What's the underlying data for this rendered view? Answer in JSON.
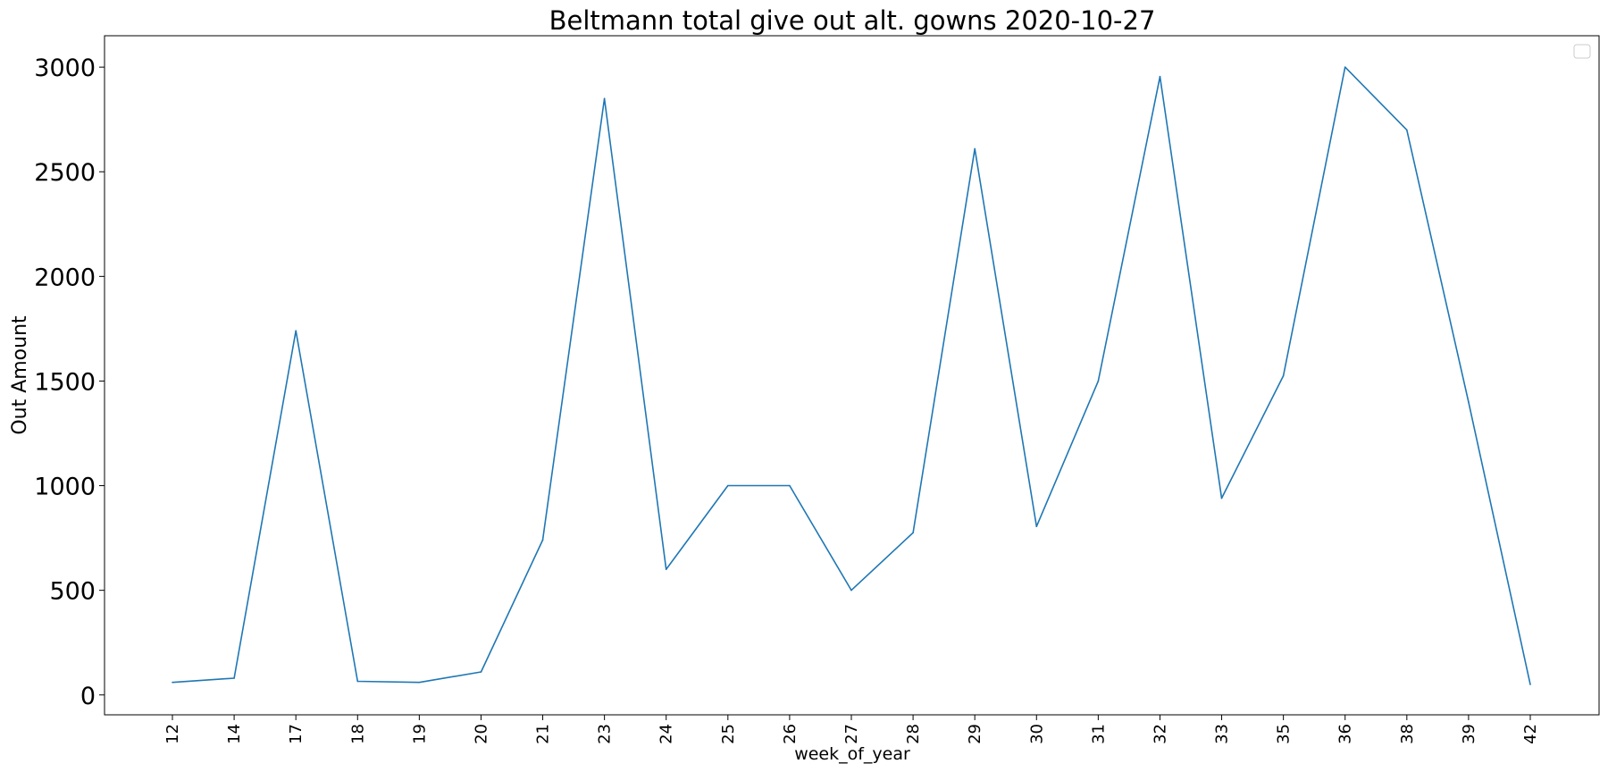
{
  "chart_data": {
    "type": "line",
    "title": "Beltmann total give out alt. gowns 2020-10-27",
    "xlabel": "week_of_year",
    "ylabel": "Out Amount",
    "categories": [
      "12",
      "14",
      "17",
      "18",
      "19",
      "20",
      "21",
      "23",
      "24",
      "25",
      "26",
      "27",
      "28",
      "29",
      "30",
      "31",
      "32",
      "33",
      "35",
      "36",
      "38",
      "39",
      "42"
    ],
    "series": [
      {
        "color": "#1f77b4",
        "values": [
          60,
          80,
          1740,
          65,
          60,
          110,
          740,
          2850,
          600,
          1000,
          1000,
          500,
          775,
          2610,
          805,
          1500,
          2955,
          940,
          1525,
          3000,
          2700,
          1400,
          50
        ]
      }
    ],
    "yticks": [
      0,
      500,
      1000,
      1500,
      2000,
      2500,
      3000
    ],
    "ylim": [
      -95,
      3150
    ],
    "grid": false,
    "legend": "top-right (empty)"
  }
}
